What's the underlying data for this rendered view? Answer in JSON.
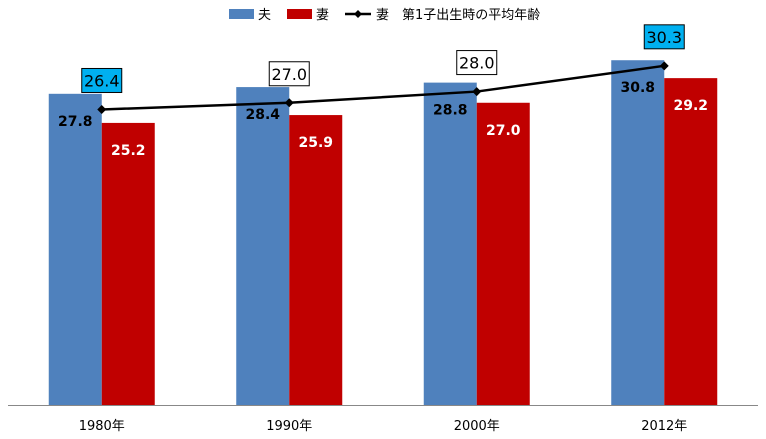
{
  "chart_data": {
    "type": "bar",
    "categories": [
      "1980年",
      "1990年",
      "2000年",
      "2012年"
    ],
    "series": [
      {
        "name": "夫",
        "type": "bar",
        "color": "#4f81bd",
        "values": [
          27.8,
          28.4,
          28.8,
          30.8
        ],
        "labels": [
          "27.8",
          "28.4",
          "28.8",
          "30.8"
        ],
        "label_color": "#000000"
      },
      {
        "name": "妻",
        "type": "bar",
        "color": "#c00000",
        "values": [
          25.2,
          25.9,
          27.0,
          29.2
        ],
        "labels": [
          "25.2",
          "25.9",
          "27.0",
          "29.2"
        ],
        "label_color": "#ffffff"
      },
      {
        "name": "妻　第1子出生時の平均年齢",
        "type": "line",
        "color": "#000000",
        "marker": "diamond",
        "values": [
          26.4,
          27.0,
          28.0,
          30.3
        ],
        "labels": [
          "26.4",
          "27.0",
          "28.0",
          "30.3"
        ],
        "label_fills": [
          "#00b0f0",
          "#ffffff",
          "#ffffff",
          "#00b0f0"
        ]
      }
    ],
    "ylim": [
      0,
      33.5
    ],
    "grid": false,
    "legend_position": "top-center",
    "title": "",
    "xlabel": "",
    "ylabel": ""
  }
}
